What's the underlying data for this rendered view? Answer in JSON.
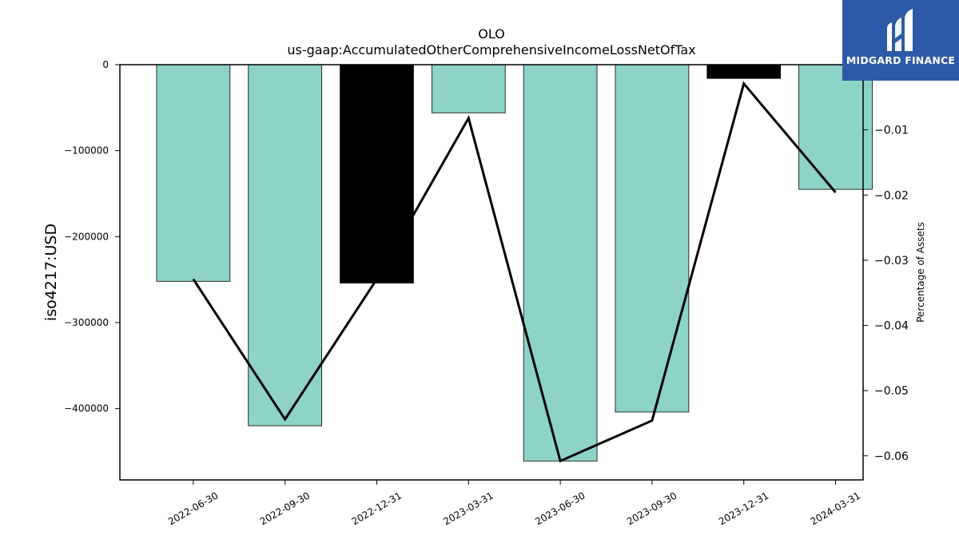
{
  "chart_data": {
    "type": "bar",
    "title": "OLO",
    "subtitle": "us-gaap:AccumulatedOtherComprehensiveIncomeLossNetOfTax",
    "ylabel": "iso4217:USD",
    "y2label": "Percentage of Assets",
    "categories": [
      "2022-06-30",
      "2022-09-30",
      "2022-12-31",
      "2023-03-31",
      "2023-06-30",
      "2023-09-30",
      "2023-12-31",
      "2024-03-31"
    ],
    "values": [
      -252000,
      -420000,
      -254000,
      -56000,
      -461000,
      -404000,
      -16000,
      -145000
    ],
    "bar_colors": [
      "#8dd3c7",
      "#8dd3c7",
      "#000000",
      "#8dd3c7",
      "#8dd3c7",
      "#8dd3c7",
      "#000000",
      "#8dd3c7"
    ],
    "line_series": {
      "values": [
        -0.0329,
        -0.0544,
        -0.0329,
        -0.0082,
        -0.0608,
        -0.0546,
        -0.0029,
        -0.0196
      ]
    },
    "ylim": [
      -483000,
      0
    ],
    "y2lim": [
      -0.0637,
      0.0
    ],
    "yticks": [
      0,
      -100000,
      -200000,
      -300000,
      -400000
    ],
    "y2ticks": [
      -0.01,
      -0.02,
      -0.03,
      -0.04,
      -0.05,
      -0.06
    ],
    "legend": "none",
    "grid": false
  },
  "logo": {
    "text": "MIDGARD FINANCE",
    "color": "#2c5aa8"
  }
}
